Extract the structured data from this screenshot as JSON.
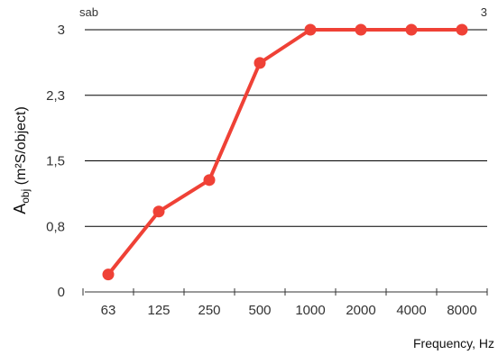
{
  "chart_data": {
    "type": "line",
    "categories": [
      "63",
      "125",
      "250",
      "500",
      "1000",
      "2000",
      "4000",
      "8000"
    ],
    "series": [
      {
        "values": [
          0.2,
          0.92,
          1.28,
          2.62,
          3.0,
          3.0,
          3.0,
          3.0
        ]
      }
    ],
    "ylim": [
      0,
      3
    ],
    "yticks": [
      "0",
      "0,8",
      "1,5",
      "2,3",
      "3"
    ],
    "ytick_values": [
      0,
      0.75,
      1.5,
      2.25,
      3
    ],
    "xlabel": "Frequency, Hz",
    "ylabel_main": "A",
    "ylabel_sub": "obj",
    "ylabel_rest": " (m²S/object)",
    "corner_label": "sab",
    "end_label": "3",
    "grid": true,
    "line_color": "#ef4136",
    "grid_color": "#000000"
  }
}
